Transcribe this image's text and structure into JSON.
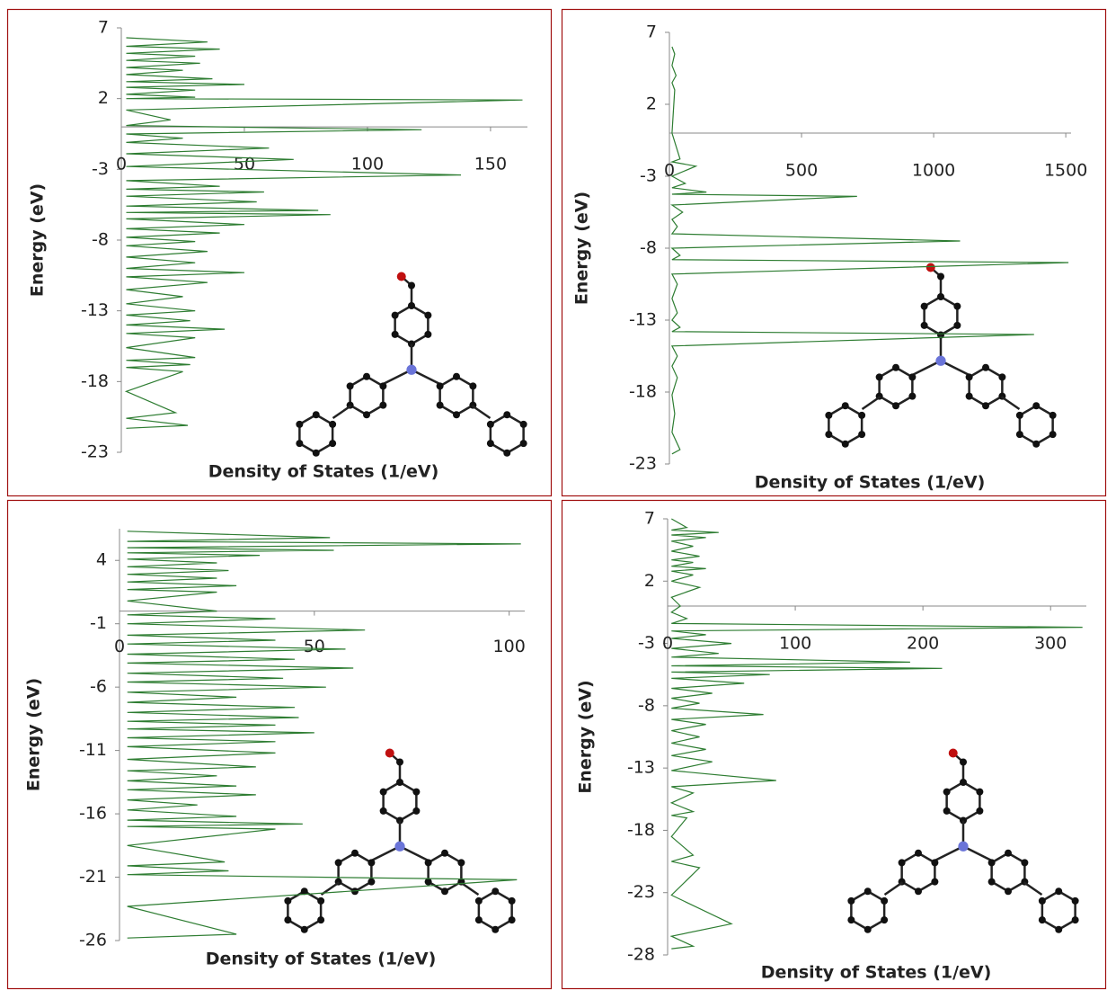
{
  "chart_data": [
    {
      "type": "line",
      "ylabel": "Energy (eV)",
      "xlabel": "Density of States (1/eV)",
      "xlim": [
        0,
        165
      ],
      "xticks": [
        0,
        50,
        100,
        150
      ],
      "ylim": [
        -23,
        7
      ],
      "yticks": [
        -23,
        -18,
        -13,
        -8,
        -3,
        2,
        7
      ],
      "color": "#2e7d32",
      "x": [
        2,
        35,
        2,
        40,
        2,
        30,
        2,
        32,
        2,
        25,
        2,
        37,
        2,
        50,
        2,
        30,
        2,
        30,
        2,
        163,
        2,
        20,
        2,
        122,
        2,
        25,
        2,
        60,
        2,
        70,
        2,
        138,
        2,
        40,
        2,
        58,
        2,
        55,
        2,
        80,
        2,
        85,
        2,
        50,
        2,
        40,
        2,
        30,
        2,
        35,
        2,
        30,
        2,
        50,
        2,
        35,
        2,
        25,
        2,
        30,
        2,
        28,
        2,
        42,
        2,
        30,
        2,
        30,
        2,
        28,
        2,
        25,
        2,
        22,
        2,
        27,
        2
      ],
      "y": [
        6.3,
        6.0,
        5.7,
        5.5,
        5.2,
        5.0,
        4.7,
        4.5,
        4.2,
        4.0,
        3.7,
        3.4,
        3.2,
        3.0,
        2.8,
        2.6,
        2.3,
        2.1,
        2.0,
        1.9,
        1.2,
        0.5,
        0.1,
        -0.2,
        -0.5,
        -0.8,
        -1.1,
        -1.5,
        -1.9,
        -2.3,
        -2.8,
        -3.4,
        -3.8,
        -4.2,
        -4.4,
        -4.6,
        -4.9,
        -5.3,
        -5.6,
        -5.9,
        -6.05,
        -6.2,
        -6.5,
        -6.9,
        -7.2,
        -7.5,
        -7.8,
        -8.1,
        -8.4,
        -8.8,
        -9.2,
        -9.6,
        -10.0,
        -10.3,
        -10.6,
        -11.0,
        -11.5,
        -12.0,
        -12.5,
        -13.0,
        -13.3,
        -13.7,
        -14.0,
        -14.3,
        -14.6,
        -14.9,
        -15.6,
        -16.3,
        -16.5,
        -16.8,
        -17.0,
        -17.3,
        -18.7,
        -20.2,
        -20.6,
        -21.1,
        -21.3
      ]
    },
    {
      "type": "line",
      "ylabel": "Energy (eV)",
      "xlabel": "Density of States (1/eV)",
      "xlim": [
        0,
        1520
      ],
      "xticks": [
        0,
        500,
        1000,
        1500
      ],
      "ylim": [
        -23,
        7
      ],
      "yticks": [
        -23,
        -18,
        -13,
        -8,
        -3,
        2,
        7
      ],
      "color": "#2e7d32",
      "x": [
        10,
        20,
        10,
        25,
        10,
        20,
        10,
        40,
        10,
        100,
        10,
        60,
        10,
        140,
        10,
        710,
        10,
        50,
        10,
        30,
        10,
        1100,
        10,
        40,
        10,
        1510,
        10,
        30,
        10,
        30,
        10,
        40,
        10,
        1380,
        10,
        30,
        10,
        30,
        10,
        20,
        10,
        40,
        10
      ],
      "y": [
        6.0,
        5.5,
        4.7,
        4.0,
        3.5,
        3.0,
        0.0,
        -1.8,
        -2.0,
        -2.3,
        -3.0,
        -3.5,
        -3.8,
        -4.1,
        -4.25,
        -4.4,
        -5.0,
        -5.5,
        -6.0,
        -6.5,
        -7.0,
        -7.5,
        -8.0,
        -8.5,
        -8.8,
        -9.0,
        -9.8,
        -10.5,
        -11.5,
        -12.5,
        -13.0,
        -13.5,
        -13.8,
        -14.0,
        -14.8,
        -15.5,
        -16.2,
        -17.0,
        -18.2,
        -19.5,
        -20.8,
        -22.0,
        -22.3
      ]
    },
    {
      "type": "line",
      "ylabel": "Energy (eV)",
      "xlabel": "Density of States (1/eV)",
      "xlim": [
        0,
        104
      ],
      "xticks": [
        0,
        50,
        100
      ],
      "ylim": [
        -26,
        6.5
      ],
      "yticks": [
        -26,
        -21,
        -16,
        -11,
        -6,
        -1,
        4
      ],
      "color": "#2e7d32",
      "x": [
        2,
        54,
        2,
        103,
        2,
        55,
        2,
        36,
        2,
        25,
        2,
        28,
        2,
        25,
        2,
        30,
        2,
        25,
        2,
        25,
        2,
        40,
        2,
        63,
        2,
        40,
        2,
        58,
        2,
        45,
        2,
        60,
        2,
        42,
        2,
        53,
        2,
        30,
        2,
        45,
        2,
        46,
        2,
        40,
        2,
        50,
        2,
        40,
        2,
        40,
        2,
        35,
        2,
        25,
        2,
        30,
        2,
        35,
        2,
        20,
        2,
        30,
        2,
        47,
        2,
        40,
        2,
        27,
        2,
        28,
        2,
        102,
        2,
        30,
        2
      ],
      "y": [
        6.3,
        5.8,
        5.5,
        5.3,
        5.0,
        4.8,
        4.6,
        4.4,
        4.1,
        3.8,
        3.5,
        3.2,
        2.9,
        2.6,
        2.3,
        2.0,
        1.7,
        1.5,
        0.8,
        0.0,
        -0.3,
        -0.6,
        -1.0,
        -1.5,
        -1.9,
        -2.3,
        -2.6,
        -3.0,
        -3.4,
        -3.8,
        -4.1,
        -4.5,
        -4.9,
        -5.3,
        -5.6,
        -6.0,
        -6.4,
        -6.8,
        -7.2,
        -7.6,
        -8.0,
        -8.4,
        -8.7,
        -9.0,
        -9.3,
        -9.6,
        -10.0,
        -10.3,
        -10.7,
        -11.2,
        -11.7,
        -12.3,
        -12.6,
        -13.0,
        -13.4,
        -13.8,
        -14.1,
        -14.5,
        -14.9,
        -15.3,
        -15.7,
        -16.2,
        -16.5,
        -16.8,
        -17.0,
        -17.2,
        -18.5,
        -19.8,
        -20.1,
        -20.5,
        -20.8,
        -21.2,
        -23.3,
        -25.5,
        -25.8
      ]
    },
    {
      "type": "line",
      "ylabel": "Energy (eV)",
      "xlabel": "Density of States (1/eV)",
      "xlim": [
        0,
        328
      ],
      "xticks": [
        0,
        100,
        200,
        300
      ],
      "ylim": [
        -28,
        7
      ],
      "yticks": [
        -28,
        -23,
        -18,
        -13,
        -8,
        -3,
        2,
        7
      ],
      "color": "#2e7d32",
      "x": [
        3,
        15,
        3,
        40,
        3,
        30,
        3,
        20,
        3,
        25,
        3,
        20,
        3,
        30,
        3,
        20,
        3,
        25,
        3,
        10,
        3,
        15,
        3,
        325,
        3,
        30,
        3,
        50,
        3,
        40,
        3,
        190,
        3,
        215,
        3,
        80,
        3,
        60,
        3,
        35,
        3,
        25,
        3,
        75,
        3,
        30,
        3,
        25,
        3,
        30,
        3,
        35,
        3,
        85,
        3,
        20,
        3,
        20,
        3,
        15,
        3,
        20,
        3,
        25,
        3,
        50,
        3,
        20,
        3
      ],
      "y": [
        7.0,
        6.3,
        6.1,
        5.9,
        5.7,
        5.5,
        5.2,
        4.8,
        4.4,
        4.0,
        3.7,
        3.5,
        3.2,
        3.0,
        2.8,
        2.5,
        2.0,
        1.5,
        0.7,
        0.0,
        -0.5,
        -1.0,
        -1.4,
        -1.7,
        -2.0,
        -2.3,
        -2.6,
        -3.0,
        -3.4,
        -3.8,
        -4.1,
        -4.5,
        -4.8,
        -5.0,
        -5.3,
        -5.5,
        -5.8,
        -6.2,
        -6.6,
        -7.0,
        -7.4,
        -7.8,
        -8.2,
        -8.7,
        -9.1,
        -9.5,
        -10.0,
        -10.5,
        -11.0,
        -11.5,
        -12.0,
        -12.5,
        -13.2,
        -14.0,
        -14.5,
        -15.0,
        -15.8,
        -16.5,
        -16.8,
        -17.0,
        -18.5,
        -20.0,
        -20.5,
        -21.0,
        -23.2,
        -25.5,
        -26.5,
        -27.3,
        -27.5
      ]
    }
  ]
}
